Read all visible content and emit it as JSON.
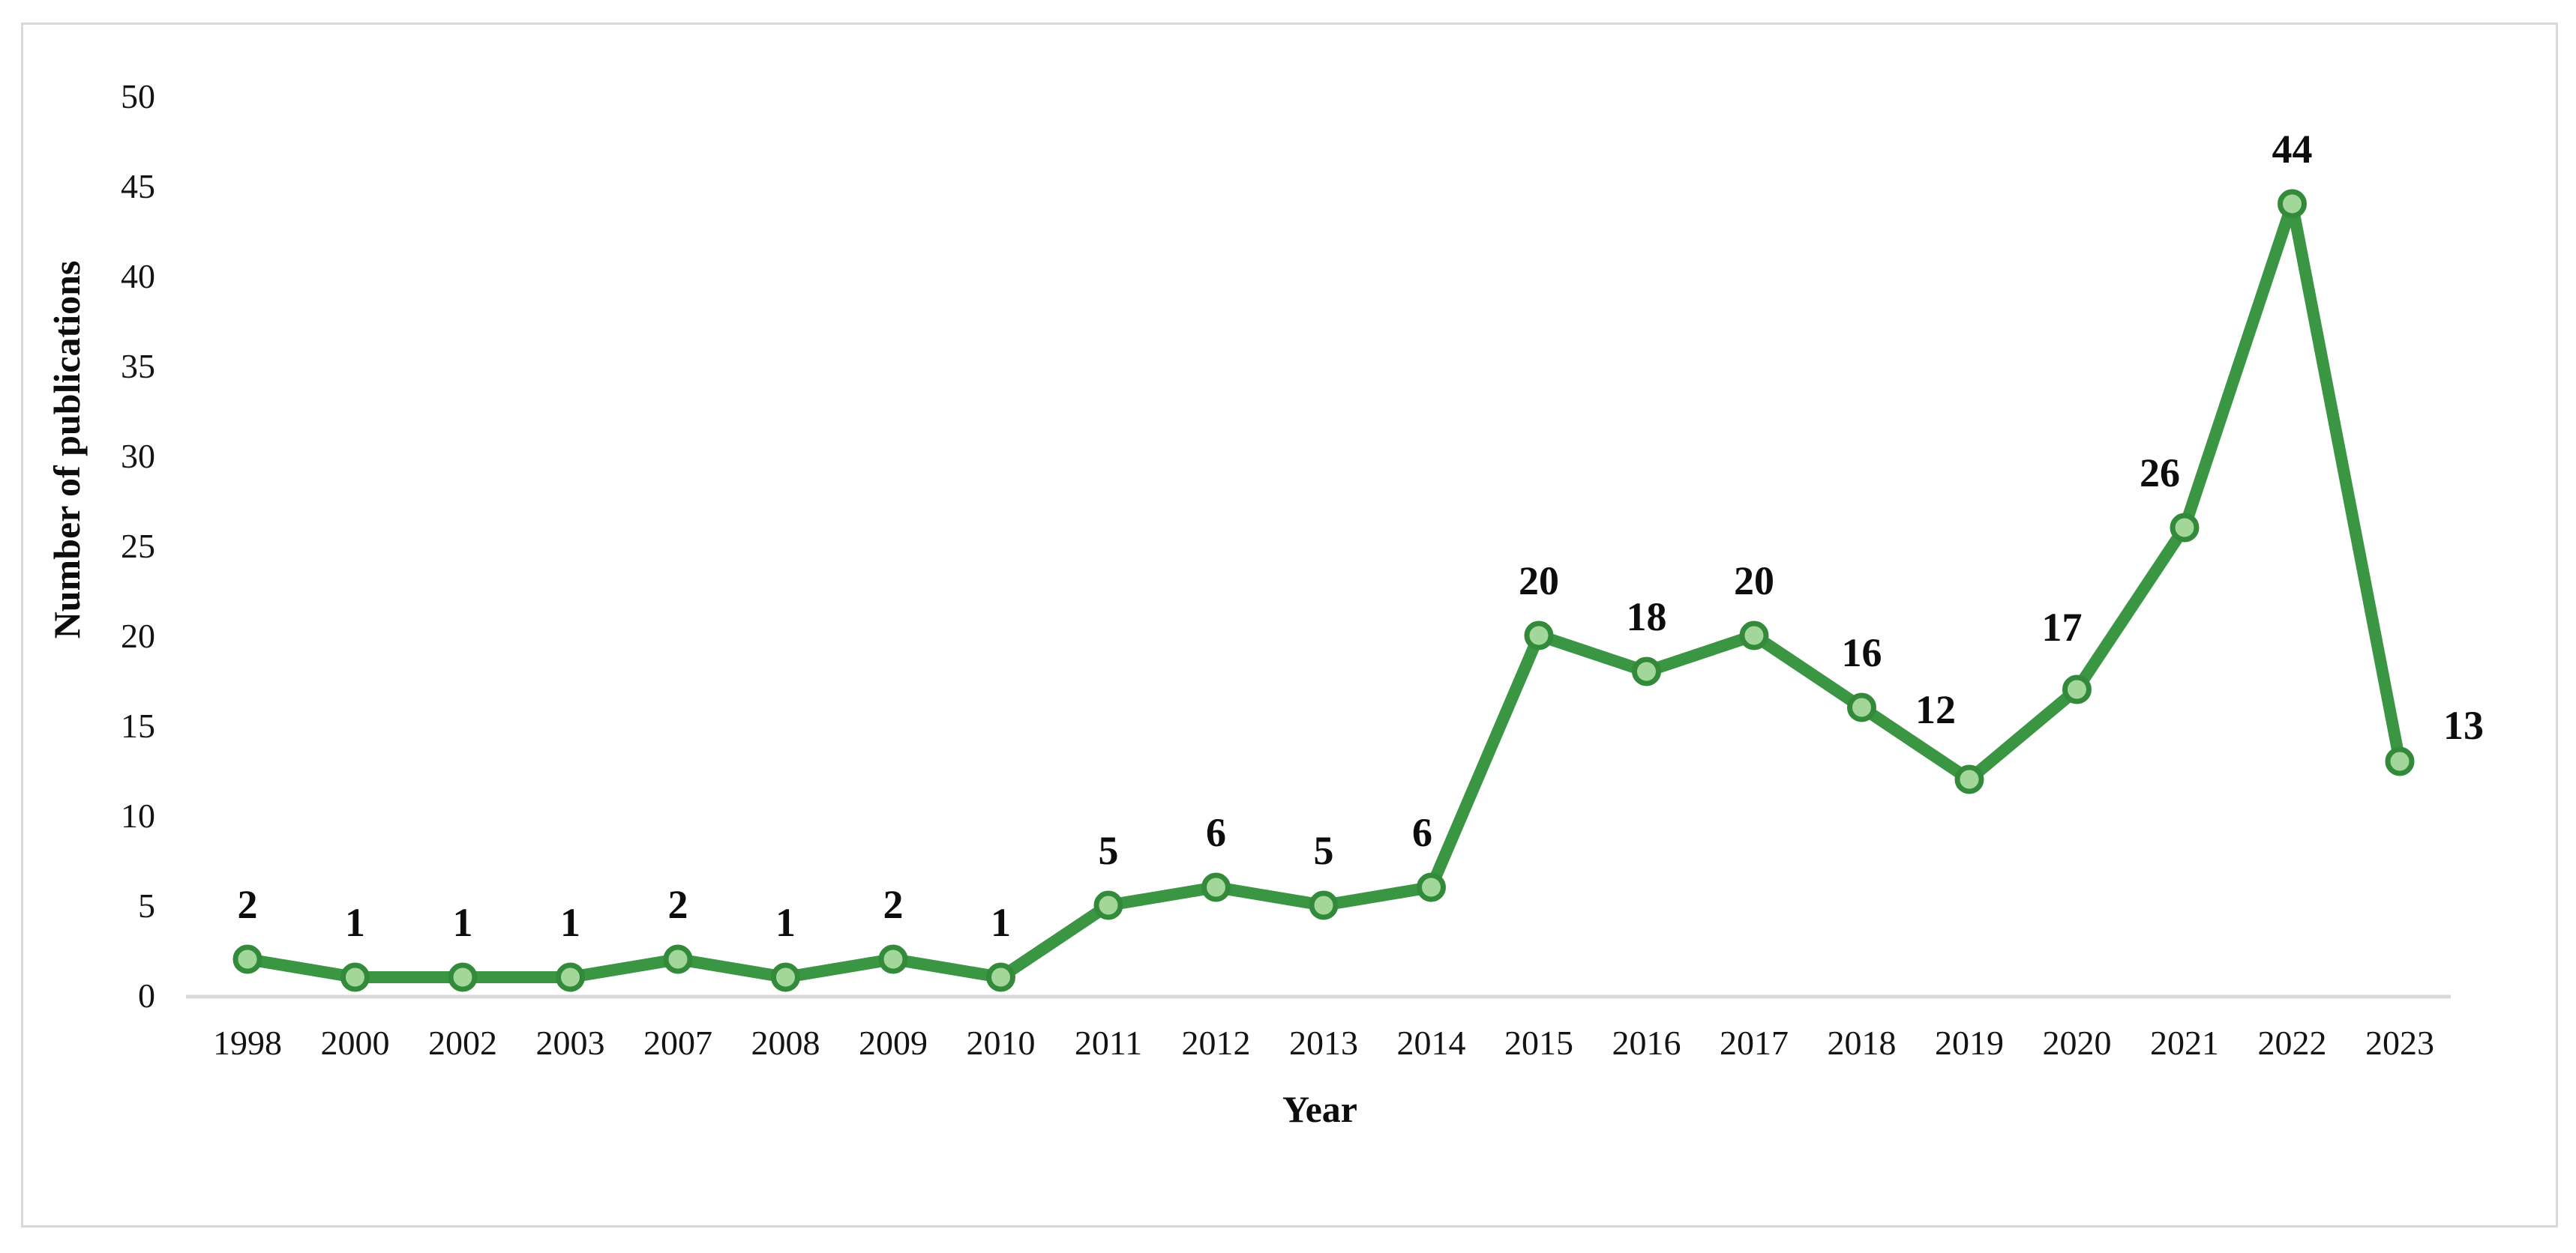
{
  "figure": {
    "background_color": "#ffffff",
    "border_color": "#d9d9d9"
  },
  "chart_data": {
    "type": "line",
    "title": "",
    "xlabel": "Year",
    "ylabel": "Number of publications",
    "categories": [
      "1998",
      "2000",
      "2002",
      "2003",
      "2007",
      "2008",
      "2009",
      "2010",
      "2011",
      "2012",
      "2013",
      "2014",
      "2015",
      "2016",
      "2017",
      "2018",
      "2019",
      "2020",
      "2021",
      "2022",
      "2023"
    ],
    "series": [
      {
        "name": "Number of publications",
        "values": [
          2,
          1,
          1,
          1,
          2,
          1,
          2,
          1,
          5,
          6,
          5,
          6,
          20,
          18,
          20,
          16,
          12,
          17,
          26,
          44,
          13
        ],
        "line_color": "#3a9642",
        "marker_fill_color": "#a3d79a",
        "marker_stroke_color": "#338a3b"
      }
    ],
    "data_labels_visible": true,
    "ylim": [
      0,
      50
    ],
    "ytick_step": 5,
    "yticks": [
      0,
      5,
      10,
      15,
      20,
      25,
      30,
      35,
      40,
      45,
      50
    ],
    "grid": false,
    "legend_position": "none",
    "axis_line_color": "#d9d9d9",
    "text_color": "#0d0d0d",
    "label_offsets": {
      "11": [
        -12,
        0
      ],
      "16": [
        -45,
        -20
      ],
      "17": [
        -20,
        -10
      ],
      "18": [
        -33,
        0
      ],
      "20": [
        85,
        25
      ]
    }
  }
}
